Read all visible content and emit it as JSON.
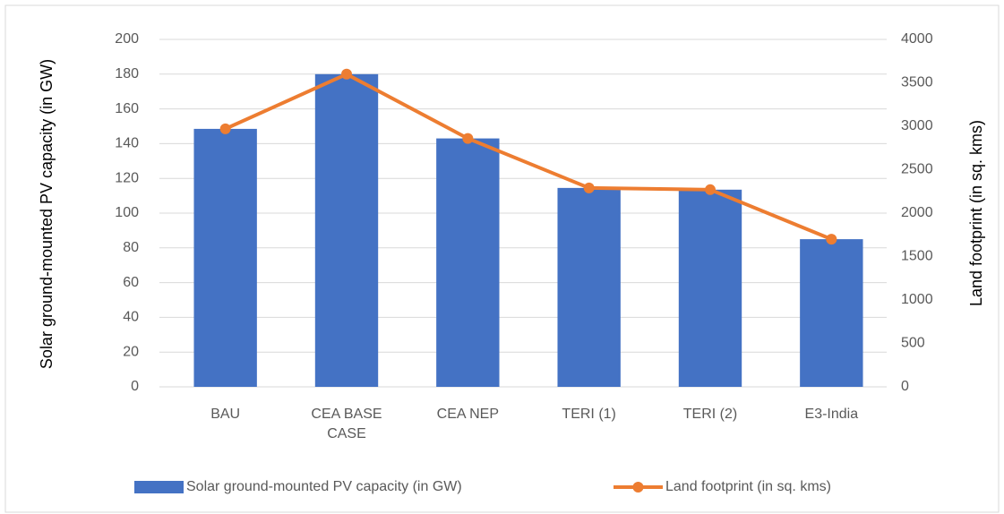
{
  "chart_data": {
    "type": "bar",
    "categories": [
      "BAU",
      "CEA BASE CASE",
      "CEA NEP",
      "TERI (1)",
      "TERI (2)",
      "E3-India"
    ],
    "series": [
      {
        "name": "Solar ground-mounted PV capacity (in GW)",
        "color": "#4472c4",
        "type": "bar",
        "values": [
          148.5,
          180,
          143,
          114.5,
          113.5,
          85
        ]
      },
      {
        "name": "Land footprint (in sq. kms)",
        "color": "#ed7d31",
        "type": "line",
        "axis": "y2",
        "values": [
          2970,
          3600,
          2860,
          2290,
          2270,
          1700
        ]
      }
    ],
    "y_label": "Solar ground-mounted PV capacity (in GW)",
    "y2_label": "Land footprint (in sq. kms)",
    "ylim": [
      0,
      200
    ],
    "yticks": [
      0,
      20,
      40,
      60,
      80,
      100,
      120,
      140,
      160,
      180,
      200
    ],
    "y2lim": [
      0,
      4000
    ],
    "y2ticks": [
      0,
      500,
      1000,
      1500,
      2000,
      2500,
      3000,
      3500,
      4000
    ],
    "grid": true,
    "legend": "bottom"
  }
}
